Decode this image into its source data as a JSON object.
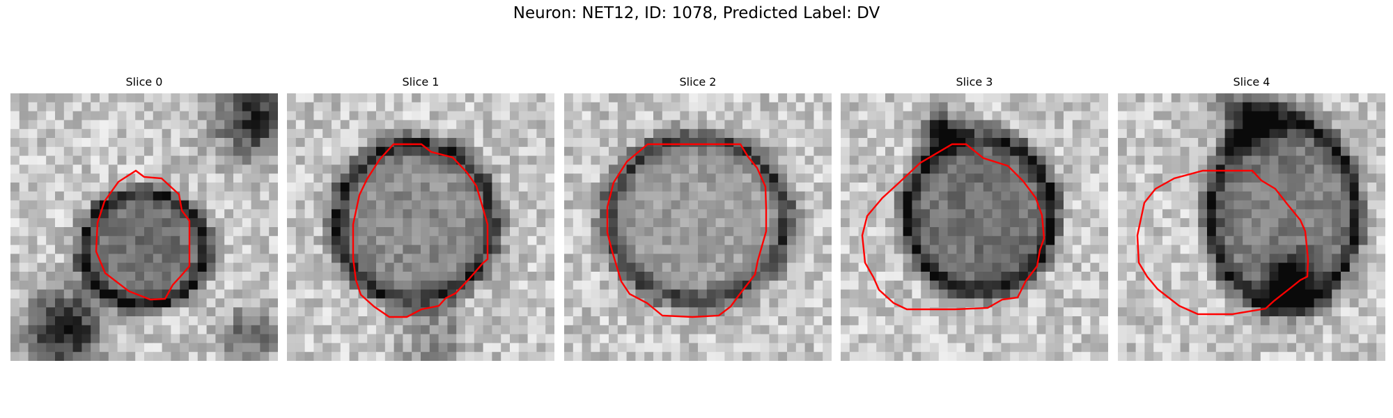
{
  "figure": {
    "title": "Neuron: NET12, ID: 1078, Predicted Label: DV",
    "contour_color": "#ff0000"
  },
  "slices": [
    {
      "title": "Slice 0"
    },
    {
      "title": "Slice 1"
    },
    {
      "title": "Slice 2"
    },
    {
      "title": "Slice 3"
    },
    {
      "title": "Slice 4"
    }
  ]
}
